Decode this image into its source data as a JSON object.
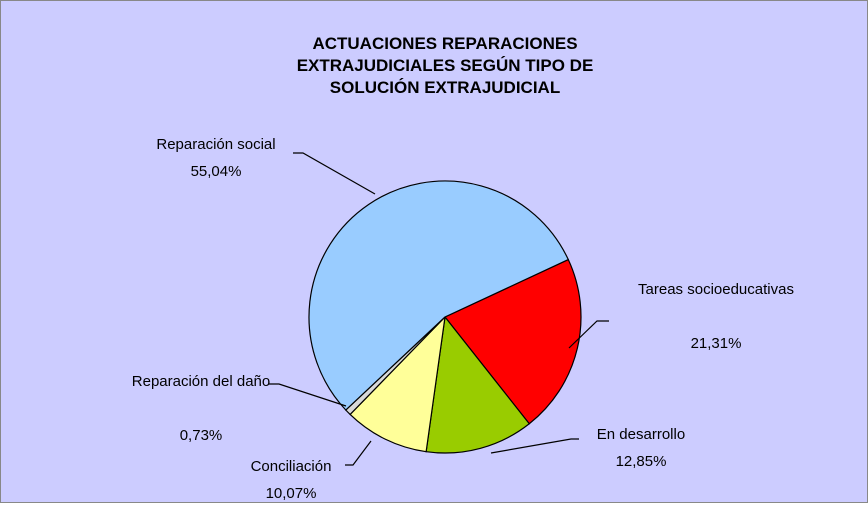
{
  "chart_data": {
    "type": "pie",
    "title": "ACTUACIONES REPARACIONES EXTRAJUDICIALES SEGÚN TIPO DE SOLUCIÓN EXTRAJUDICIAL",
    "categories": [
      "Tareas socioeducativas",
      "En desarrollo",
      "Conciliación",
      "Reparación del daño",
      "Reparación social"
    ],
    "values": [
      21.31,
      12.85,
      10.07,
      0.73,
      55.04
    ],
    "value_labels": [
      "21,31%",
      "12,85%",
      "10,07%",
      "0,73%",
      "55,04%"
    ],
    "colors": [
      "#ff0000",
      "#99cc00",
      "#ffff99",
      "#d9d9d9",
      "#99ccff"
    ]
  }
}
